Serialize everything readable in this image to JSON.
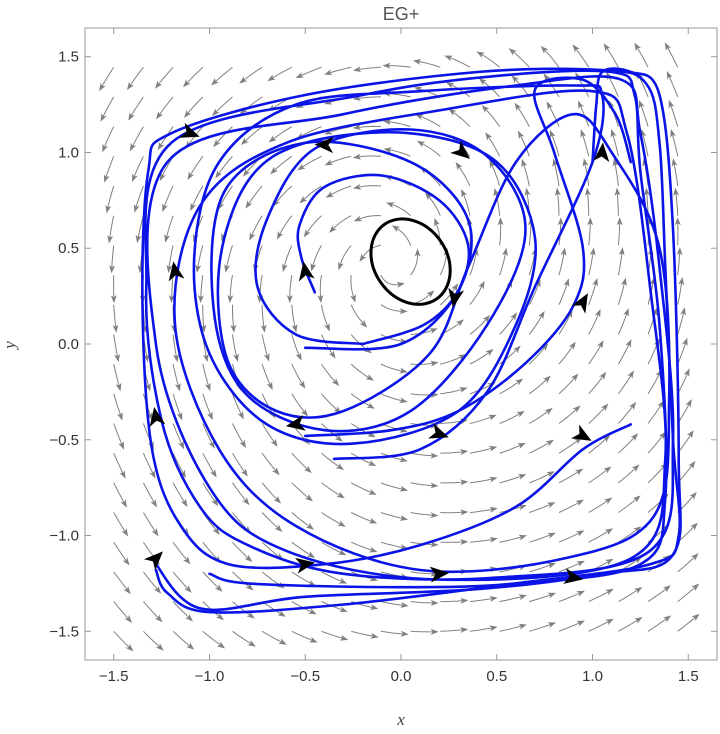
{
  "chart_data": {
    "type": "streamplot",
    "title": "EG+",
    "xlabel": "x",
    "ylabel": "y",
    "xlim": [
      -1.65,
      1.65
    ],
    "ylim": [
      -1.65,
      1.65
    ],
    "xticks": [
      -1.5,
      -1.0,
      -0.5,
      0.0,
      0.5,
      1.0,
      1.5
    ],
    "xtick_labels": [
      "−1.5",
      "−1.0",
      "−0.5",
      "0.0",
      "0.5",
      "1.0",
      "1.5"
    ],
    "yticks": [
      -1.5,
      -1.0,
      -0.5,
      0.0,
      0.5,
      1.0,
      1.5
    ],
    "ytick_labels": [
      "−1.5",
      "−1.0",
      "−0.5",
      "0.0",
      "0.5",
      "1.0",
      "1.5"
    ],
    "grid": false,
    "colors": {
      "stream": "#808080",
      "trajectory": "#0a14e6",
      "limit_cycle": "#000000",
      "arrow_marker": "#000000"
    },
    "limit_cycle": {
      "center": [
        0.05,
        0.43
      ],
      "rx": 0.19,
      "ry": 0.19,
      "tilt_deg": -35
    },
    "trajectories": [
      [
        [
          -0.45,
          0.27
        ],
        [
          -0.52,
          0.45
        ],
        [
          -0.53,
          0.62
        ],
        [
          -0.4,
          0.82
        ],
        [
          -0.1,
          0.88
        ],
        [
          0.2,
          0.75
        ],
        [
          0.35,
          0.52
        ],
        [
          0.3,
          0.28
        ],
        [
          0.12,
          0.1
        ],
        [
          -0.2,
          0.0
        ]
      ],
      [
        [
          -0.2,
          0.0
        ],
        [
          -0.55,
          0.05
        ],
        [
          -0.75,
          0.3
        ],
        [
          -0.7,
          0.65
        ],
        [
          -0.45,
          1.02
        ],
        [
          0.05,
          1.12
        ],
        [
          0.45,
          0.98
        ],
        [
          0.65,
          0.6
        ],
        [
          0.45,
          0.1
        ],
        [
          0.05,
          -0.35
        ],
        [
          -0.4,
          -0.45
        ],
        [
          -0.82,
          -0.25
        ],
        [
          -0.98,
          0.2
        ],
        [
          -0.92,
          0.8
        ],
        [
          -0.5,
          1.05
        ],
        [
          0.05,
          0.95
        ],
        [
          0.35,
          0.65
        ],
        [
          0.3,
          0.28
        ],
        [
          0.0,
          0.0
        ],
        [
          -0.5,
          -0.02
        ]
      ],
      [
        [
          -1.0,
          -1.2
        ],
        [
          -0.8,
          -1.25
        ],
        [
          0.0,
          -1.27
        ],
        [
          0.6,
          -1.25
        ],
        [
          1.25,
          -1.15
        ],
        [
          1.38,
          -0.8
        ],
        [
          1.35,
          0.1
        ],
        [
          1.25,
          0.9
        ],
        [
          1.22,
          1.3
        ],
        [
          1.1,
          1.42
        ],
        [
          0.5,
          1.4
        ],
        [
          -0.2,
          1.3
        ],
        [
          -1.2,
          1.05
        ],
        [
          -1.33,
          0.3
        ],
        [
          -1.25,
          -0.4
        ],
        [
          -1.05,
          -0.85
        ],
        [
          -0.8,
          -1.05
        ],
        [
          -0.3,
          -1.2
        ],
        [
          0.5,
          -1.22
        ],
        [
          1.3,
          -1.08
        ],
        [
          1.42,
          -0.5
        ],
        [
          1.35,
          0.4
        ],
        [
          1.25,
          1.1
        ],
        [
          1.15,
          1.38
        ],
        [
          0.6,
          1.35
        ],
        [
          -0.3,
          1.2
        ],
        [
          -1.22,
          0.95
        ],
        [
          -1.28,
          0.0
        ],
        [
          -1.0,
          -0.75
        ],
        [
          -0.6,
          -1.08
        ],
        [
          0.2,
          -1.23
        ],
        [
          1.2,
          -1.12
        ],
        [
          1.38,
          -0.6
        ],
        [
          1.3,
          0.3
        ],
        [
          1.18,
          1.1
        ],
        [
          1.0,
          1.32
        ],
        [
          0.2,
          1.22
        ],
        [
          -0.6,
          1.05
        ],
        [
          -1.05,
          0.72
        ],
        [
          -1.18,
          0.1
        ],
        [
          -0.95,
          -0.55
        ],
        [
          -0.55,
          -0.95
        ],
        [
          0.1,
          -1.18
        ],
        [
          0.85,
          -1.12
        ],
        [
          1.32,
          -0.9
        ],
        [
          1.4,
          -0.3
        ],
        [
          1.35,
          0.5
        ],
        [
          1.1,
          1.0
        ],
        [
          0.9,
          1.2
        ],
        [
          0.6,
          0.95
        ],
        [
          0.35,
          0.4
        ],
        [
          0.15,
          -0.05
        ],
        [
          -0.3,
          -0.35
        ],
        [
          -0.65,
          -0.35
        ],
        [
          -0.9,
          -0.1
        ],
        [
          -0.95,
          0.4
        ],
        [
          -0.8,
          0.85
        ],
        [
          -0.5,
          1.05
        ],
        [
          0.05,
          1.1
        ],
        [
          0.5,
          0.95
        ],
        [
          0.7,
          0.55
        ],
        [
          0.6,
          0.1
        ],
        [
          0.3,
          -0.35
        ],
        [
          -0.25,
          -0.52
        ],
        [
          -0.7,
          -0.42
        ],
        [
          -1.0,
          -0.05
        ],
        [
          -1.08,
          0.45
        ],
        [
          -0.95,
          0.95
        ],
        [
          -0.55,
          1.25
        ],
        [
          0.1,
          1.32
        ],
        [
          0.9,
          1.35
        ],
        [
          1.05,
          1.3
        ],
        [
          1.0,
          0.95
        ],
        [
          0.7,
          0.3
        ],
        [
          0.45,
          -0.25
        ],
        [
          0.1,
          -0.55
        ],
        [
          -0.35,
          -0.6
        ]
      ],
      [
        [
          1.0,
          0.95
        ],
        [
          1.02,
          1.25
        ],
        [
          1.05,
          1.42
        ],
        [
          1.2,
          1.42
        ],
        [
          1.35,
          1.3
        ],
        [
          1.42,
          0.6
        ],
        [
          1.45,
          -0.6
        ],
        [
          1.42,
          -1.1
        ],
        [
          1.05,
          -1.2
        ],
        [
          0.4,
          -1.28
        ],
        [
          -0.5,
          -1.32
        ],
        [
          -1.05,
          -1.38
        ],
        [
          -1.3,
          -1.12
        ]
      ],
      [
        [
          1.2,
          -0.42
        ],
        [
          0.95,
          -0.55
        ],
        [
          0.6,
          -0.85
        ],
        [
          0.1,
          -1.05
        ],
        [
          -0.4,
          -1.15
        ],
        [
          -0.9,
          -1.15
        ],
        [
          -1.15,
          -0.95
        ],
        [
          -1.3,
          -0.55
        ],
        [
          -1.35,
          0.2
        ],
        [
          -1.32,
          0.9
        ],
        [
          -1.2,
          1.1
        ],
        [
          -0.5,
          1.3
        ],
        [
          0.4,
          1.42
        ],
        [
          1.05,
          1.43
        ],
        [
          1.28,
          1.36
        ],
        [
          1.35,
          1.05
        ],
        [
          1.38,
          0.4
        ],
        [
          1.42,
          -0.5
        ],
        [
          1.45,
          -1.0
        ],
        [
          1.3,
          -1.15
        ],
        [
          0.6,
          -1.25
        ],
        [
          -0.3,
          -1.36
        ],
        [
          -1.0,
          -1.4
        ],
        [
          -1.22,
          -1.3
        ],
        [
          -1.28,
          -1.18
        ]
      ],
      [
        [
          1.2,
          0.95
        ],
        [
          1.12,
          1.2
        ],
        [
          0.95,
          1.38
        ],
        [
          0.7,
          1.33
        ],
        [
          0.8,
          1.0
        ],
        [
          0.95,
          0.5
        ],
        [
          0.9,
          0.2
        ],
        [
          0.65,
          -0.1
        ],
        [
          0.3,
          -0.35
        ],
        [
          -0.05,
          -0.45
        ],
        [
          -0.5,
          -0.48
        ]
      ]
    ],
    "arrow_markers": [
      {
        "x": -1.1,
        "y": 1.1,
        "angle": -20
      },
      {
        "x": -0.4,
        "y": 1.04,
        "angle": 178
      },
      {
        "x": 0.32,
        "y": 1.0,
        "angle": -40
      },
      {
        "x": 1.05,
        "y": 1.0,
        "angle": 85
      },
      {
        "x": -0.5,
        "y": 0.38,
        "angle": 100
      },
      {
        "x": 0.28,
        "y": 0.24,
        "angle": -100
      },
      {
        "x": -1.18,
        "y": 0.38,
        "angle": 100
      },
      {
        "x": 0.95,
        "y": 0.22,
        "angle": 60
      },
      {
        "x": -1.28,
        "y": -0.38,
        "angle": 100
      },
      {
        "x": -0.55,
        "y": -0.42,
        "angle": 190
      },
      {
        "x": 0.2,
        "y": -0.47,
        "angle": -20
      },
      {
        "x": 0.95,
        "y": -0.48,
        "angle": -30
      },
      {
        "x": -1.28,
        "y": -1.12,
        "angle": 45
      },
      {
        "x": -0.5,
        "y": -1.15,
        "angle": 10
      },
      {
        "x": 0.2,
        "y": -1.2,
        "angle": 5
      },
      {
        "x": 0.9,
        "y": -1.22,
        "angle": -10
      }
    ]
  }
}
